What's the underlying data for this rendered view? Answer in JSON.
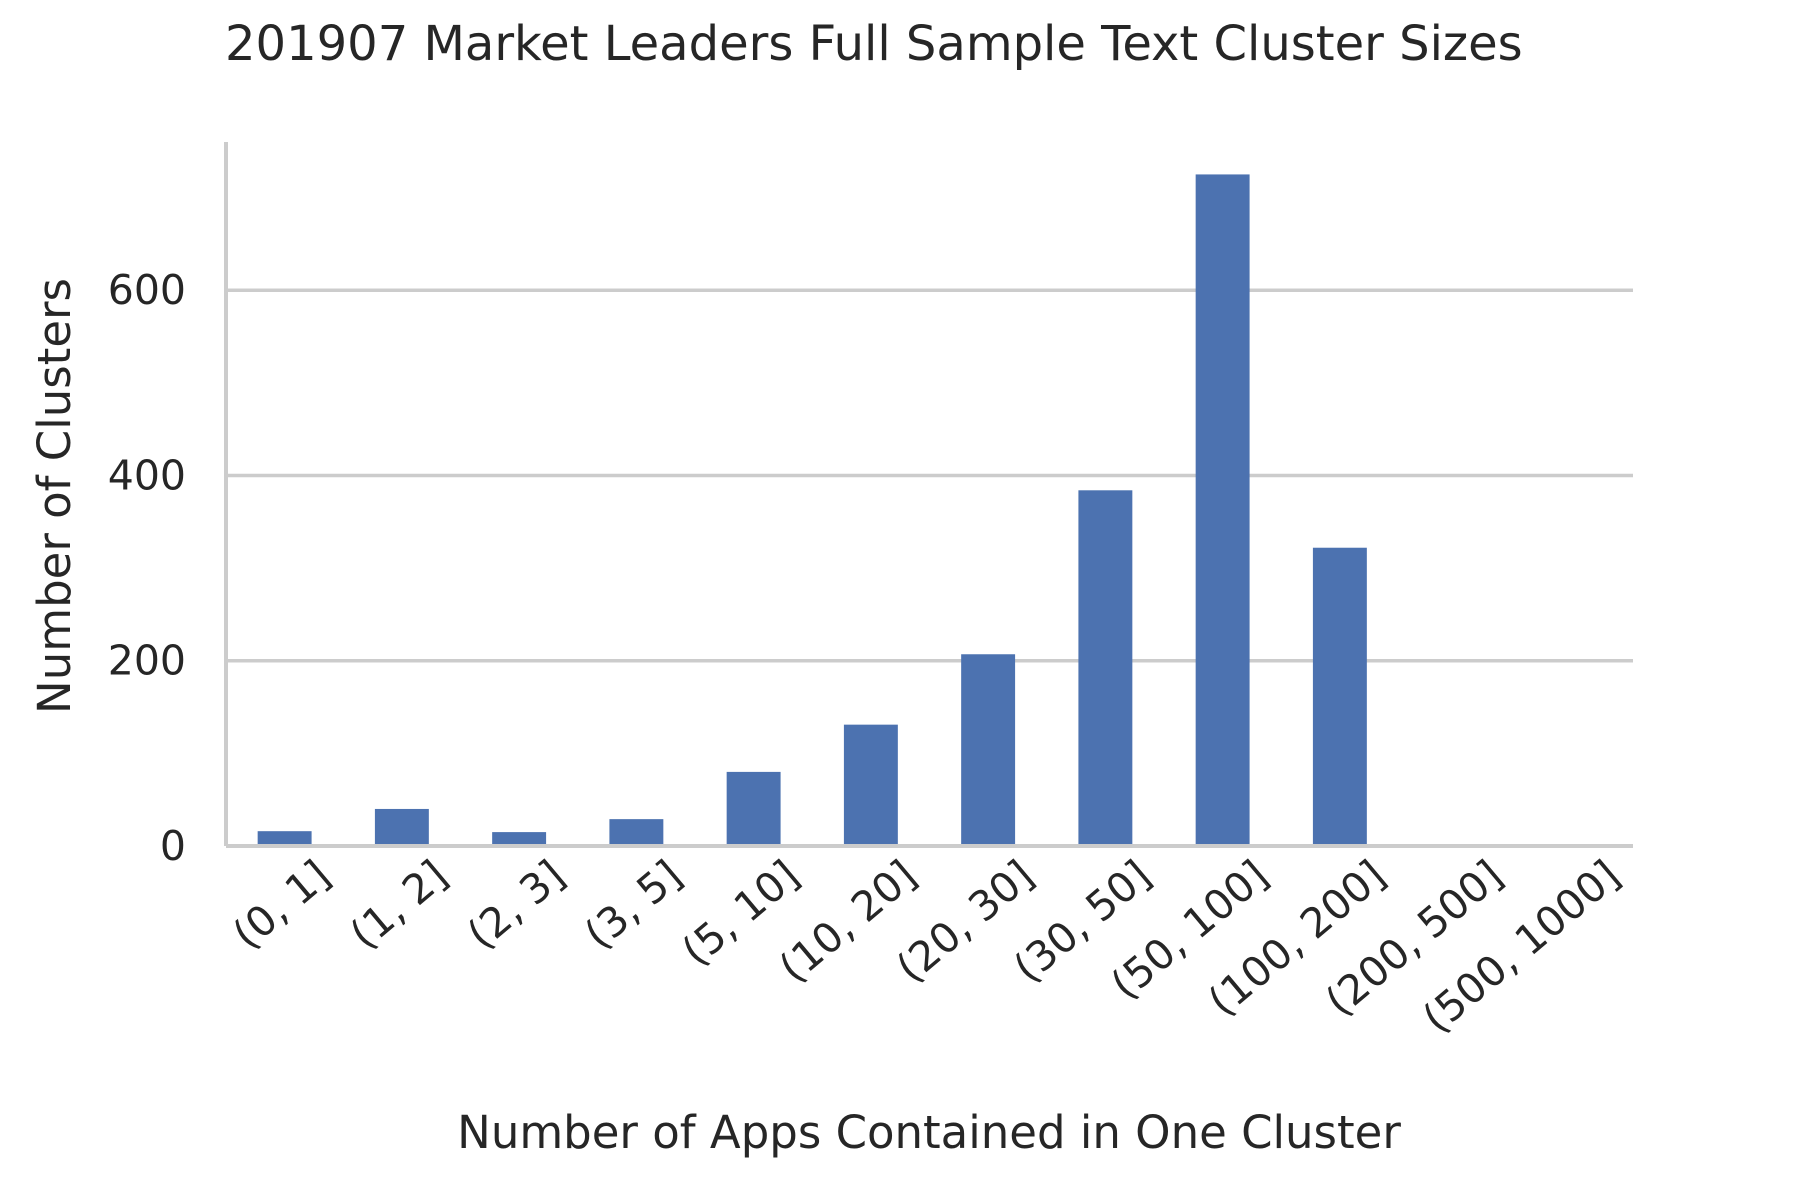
{
  "chart_data": {
    "type": "bar",
    "title": "201907 Market Leaders Full Sample Text Cluster Sizes",
    "xlabel": "Number of Apps Contained in One Cluster",
    "ylabel": "Number of Clusters",
    "categories": [
      "(0, 1]",
      "(1, 2]",
      "(2, 3]",
      "(3, 5]",
      "(5, 10]",
      "(10, 20]",
      "(20, 30]",
      "(30, 50]",
      "(50, 100]",
      "(100, 200]",
      "(200, 500]",
      "(500, 1000]"
    ],
    "values": [
      16,
      40,
      15,
      29,
      80,
      131,
      207,
      384,
      725,
      322,
      0,
      0
    ],
    "ylim": [
      0,
      760
    ],
    "yticks": [
      0,
      200,
      400,
      600
    ],
    "grid": true,
    "bar_color": "#4c72b0"
  }
}
